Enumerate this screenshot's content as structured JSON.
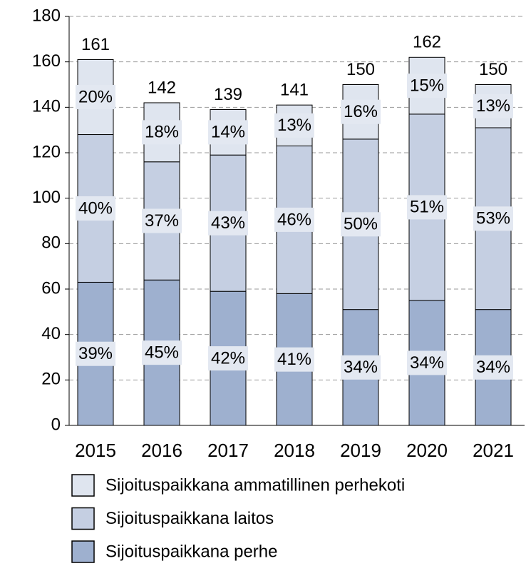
{
  "chart_data": {
    "type": "stacked_bar",
    "categories": [
      "2015",
      "2016",
      "2017",
      "2018",
      "2019",
      "2020",
      "2021"
    ],
    "series": [
      {
        "name": "Sijoituspaikkana perhe",
        "color": "#9eb0cf",
        "values": [
          63,
          64,
          59,
          58,
          51,
          55,
          51
        ],
        "share_labels": [
          "39%",
          "45%",
          "42%",
          "41%",
          "34%",
          "34%",
          "34%"
        ]
      },
      {
        "name": "Sijoituspaikkana laitos",
        "color": "#c5cfe2",
        "values": [
          65,
          52,
          60,
          65,
          75,
          82,
          80
        ],
        "share_labels": [
          "40%",
          "37%",
          "43%",
          "46%",
          "50%",
          "51%",
          "53%"
        ]
      },
      {
        "name": "Sijoituspaikkana ammatillinen perhekoti",
        "color": "#dfe5ef",
        "values": [
          33,
          26,
          20,
          18,
          24,
          25,
          19
        ],
        "share_labels": [
          "20%",
          "18%",
          "14%",
          "13%",
          "16%",
          "15%",
          "13%"
        ]
      }
    ],
    "totals": [
      161,
      142,
      139,
      141,
      150,
      162,
      150
    ],
    "ylim": [
      0,
      180
    ],
    "yticks": [
      0,
      20,
      40,
      60,
      80,
      100,
      120,
      140,
      160,
      180
    ],
    "grid": true
  }
}
